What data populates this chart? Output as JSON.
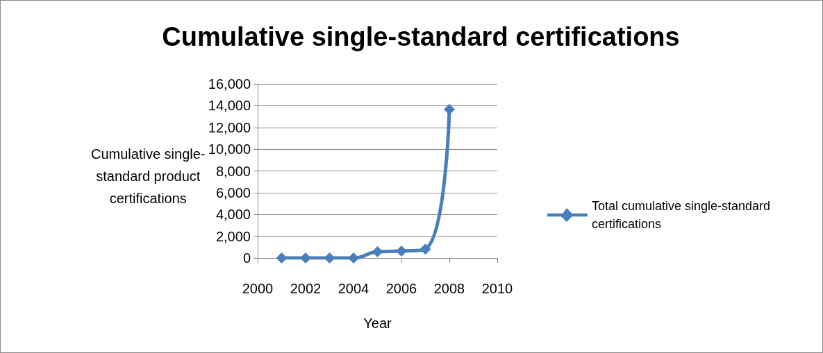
{
  "chart_data": {
    "type": "line",
    "title": "Cumulative single-standard certifications",
    "xlabel": "Year",
    "ylabel": "Cumulative single-\nstandard product\ncertifications",
    "x": [
      2001,
      2002,
      2003,
      2004,
      2005,
      2006,
      2007,
      2008
    ],
    "series": [
      {
        "name": "Total cumulative single-standard\ncertifications",
        "color": "#4a7ebb",
        "values": [
          0,
          0,
          0,
          0,
          570,
          630,
          820,
          13650
        ]
      }
    ],
    "xlim": [
      2000,
      2010
    ],
    "xticks": [
      2000,
      2002,
      2004,
      2006,
      2008,
      2010
    ],
    "ylim": [
      0,
      16000
    ],
    "yticks": [
      0,
      {
        "value": 2000,
        "label": "2,000"
      },
      {
        "value": 4000,
        "label": "4,000"
      },
      {
        "value": 6000,
        "label": "6,000"
      },
      {
        "value": 8000,
        "label": "8,000"
      },
      {
        "value": 10000,
        "label": "10,000"
      },
      {
        "value": 12000,
        "label": "12,000"
      },
      {
        "value": 14000,
        "label": "14,000"
      },
      {
        "value": 16000,
        "label": "16,000"
      }
    ],
    "grid": "y",
    "legend": "right",
    "marker": "diamond",
    "line_style": "solid"
  }
}
